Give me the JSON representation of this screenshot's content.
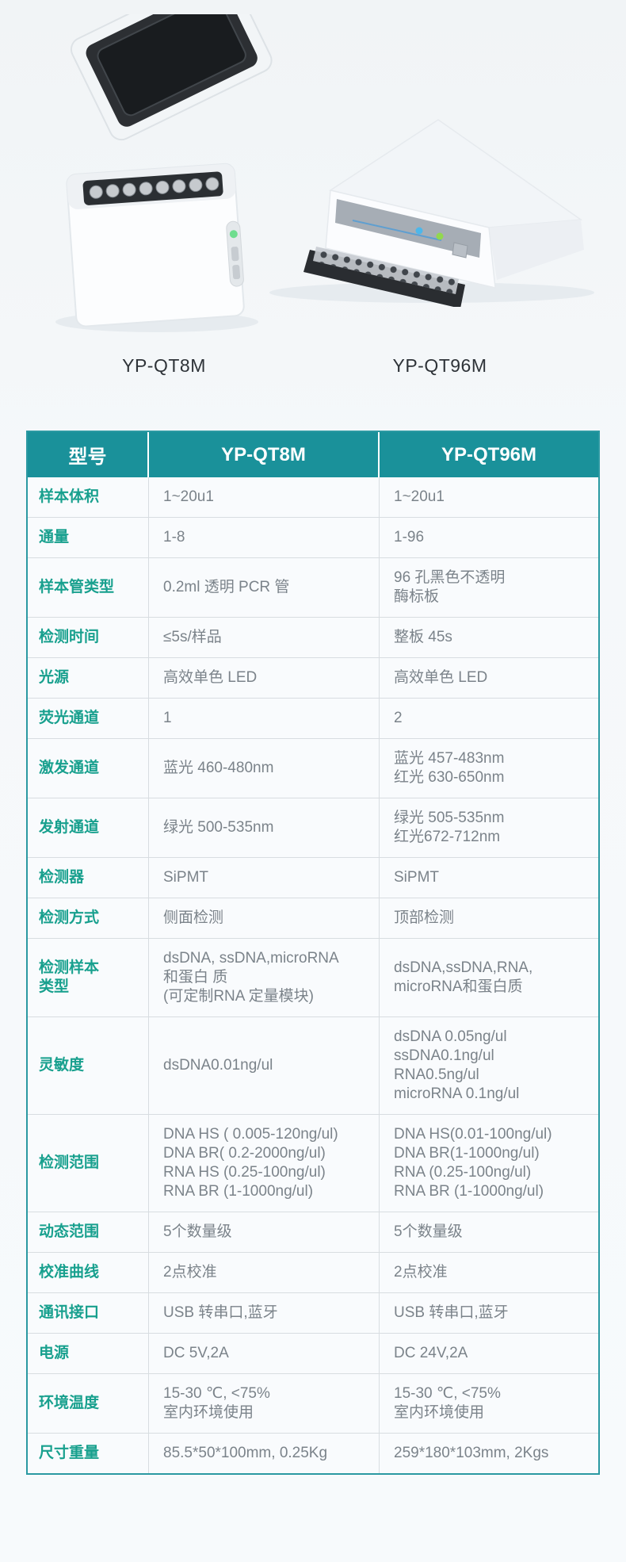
{
  "hero": {
    "products": [
      {
        "caption": "YP-QT8M"
      },
      {
        "caption": "YP-QT96M"
      }
    ]
  },
  "colors": {
    "header_teal": "#1a919a",
    "label_teal": "#18a08e",
    "value_gray": "#7b838a",
    "table_border_teal": "#2b99a2",
    "grid_line": "#d8dde1",
    "led_green": "#7ed957",
    "led_blue": "#4db7ea",
    "page_background": "#f6f9fc"
  },
  "table": {
    "header": {
      "col1": "型号",
      "col2": "YP-QT8M",
      "col3": "YP-QT96M"
    },
    "rows": [
      {
        "label": [
          "样本体积"
        ],
        "qt8m": [
          "1~20u1"
        ],
        "qt96m": [
          "1~20u1"
        ]
      },
      {
        "label": [
          "通量"
        ],
        "qt8m": [
          "1-8"
        ],
        "qt96m": [
          "1-96"
        ]
      },
      {
        "label": [
          "样本管类型"
        ],
        "qt8m": [
          "0.2ml 透明 PCR 管"
        ],
        "qt96m": [
          "96 孔黑色不透明",
          "酶标板"
        ]
      },
      {
        "label": [
          "检测时间"
        ],
        "qt8m": [
          "≤5s/样品"
        ],
        "qt96m": [
          "整板 45s"
        ]
      },
      {
        "label": [
          "光源"
        ],
        "qt8m": [
          "高效单色 LED"
        ],
        "qt96m": [
          "高效单色 LED"
        ]
      },
      {
        "label": [
          "荧光通道"
        ],
        "qt8m": [
          "1"
        ],
        "qt96m": [
          "2"
        ]
      },
      {
        "label": [
          "激发通道"
        ],
        "qt8m": [
          "蓝光 460-480nm"
        ],
        "qt96m": [
          "蓝光 457-483nm",
          "红光 630-650nm"
        ]
      },
      {
        "label": [
          "发射通道"
        ],
        "qt8m": [
          "绿光 500-535nm"
        ],
        "qt96m": [
          "绿光 505-535nm",
          "红光672-712nm"
        ]
      },
      {
        "label": [
          "检测器"
        ],
        "qt8m": [
          "SiPMT"
        ],
        "qt96m": [
          "SiPMT"
        ]
      },
      {
        "label": [
          "检测方式"
        ],
        "qt8m": [
          "侧面检测"
        ],
        "qt96m": [
          "顶部检测"
        ]
      },
      {
        "label": [
          "检测样本",
          "类型"
        ],
        "qt8m": [
          "dsDNA, ssDNA,microRNA",
          "和蛋白 质",
          "(可定制RNA 定量模块)"
        ],
        "qt96m": [
          "dsDNA,ssDNA,RNA,",
          "microRNA和蛋白质"
        ]
      },
      {
        "label": [
          "灵敏度"
        ],
        "qt8m": [
          "dsDNA0.01ng/ul"
        ],
        "qt96m": [
          "dsDNA 0.05ng/ul",
          "ssDNA0.1ng/ul",
          "RNA0.5ng/ul",
          "microRNA 0.1ng/ul"
        ]
      },
      {
        "label": [
          "检测范围"
        ],
        "qt8m": [
          "DNA HS ( 0.005-120ng/ul)",
          "DNA BR( 0.2-2000ng/ul)",
          "RNA HS (0.25-100ng/ul)",
          "RNA BR (1-1000ng/ul)"
        ],
        "qt96m": [
          "DNA HS(0.01-100ng/ul)",
          "DNA BR(1-1000ng/ul)",
          "RNA (0.25-100ng/ul)",
          "RNA BR (1-1000ng/ul)"
        ]
      },
      {
        "label": [
          "动态范围"
        ],
        "qt8m": [
          "5个数量级"
        ],
        "qt96m": [
          "5个数量级"
        ]
      },
      {
        "label": [
          "校准曲线"
        ],
        "qt8m": [
          "2点校准"
        ],
        "qt96m": [
          "2点校准"
        ]
      },
      {
        "label": [
          "通讯接口"
        ],
        "qt8m": [
          "USB 转串口,蓝牙"
        ],
        "qt96m": [
          "USB 转串口,蓝牙"
        ]
      },
      {
        "label": [
          "电源"
        ],
        "qt8m": [
          "DC 5V,2A"
        ],
        "qt96m": [
          "DC 24V,2A"
        ]
      },
      {
        "label": [
          "环境温度"
        ],
        "qt8m": [
          "15-30 ℃, <75%",
          "室内环境使用"
        ],
        "qt96m": [
          "15-30 ℃, <75%",
          "室内环境使用"
        ]
      },
      {
        "label": [
          "尺寸重量"
        ],
        "qt8m": [
          "85.5*50*100mm, 0.25Kg"
        ],
        "qt96m": [
          "259*180*103mm, 2Kgs"
        ]
      }
    ]
  }
}
